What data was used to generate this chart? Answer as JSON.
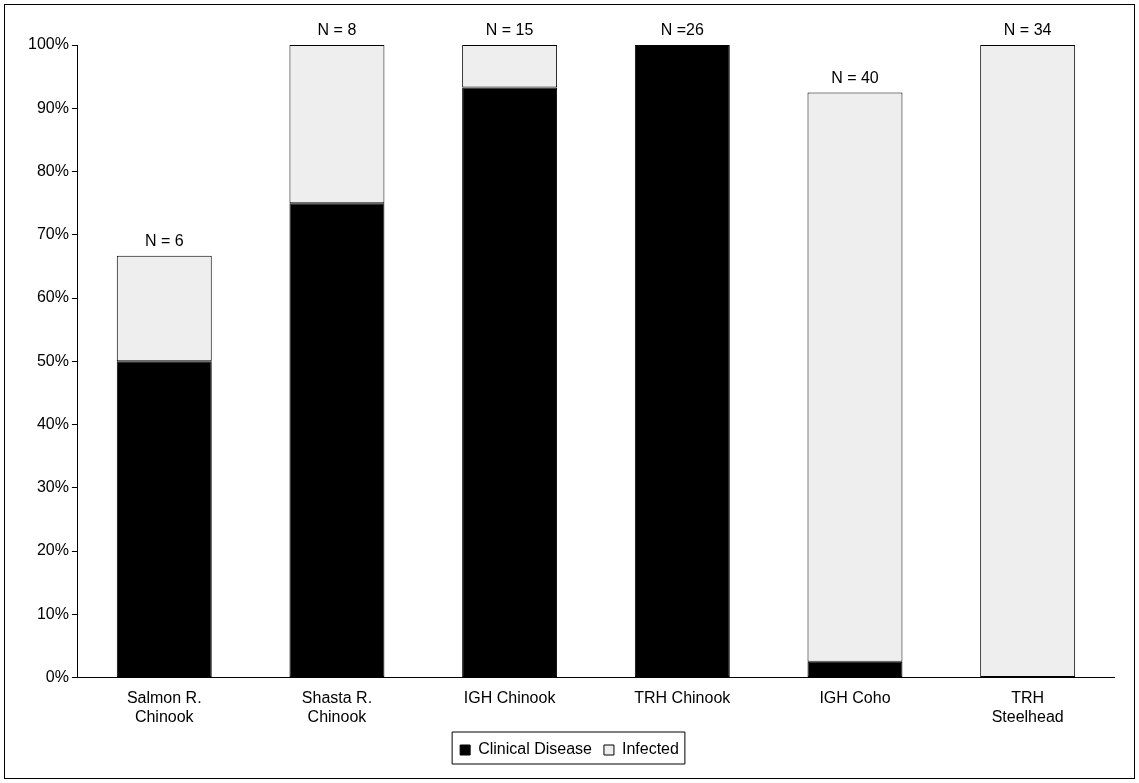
{
  "chart_data": {
    "type": "bar",
    "stacked": true,
    "categories": [
      "Salmon R. Chinook",
      "Shasta R. Chinook",
      "IGH Chinook",
      "TRH Chinook",
      "IGH Coho",
      "TRH Steelhead"
    ],
    "series": [
      {
        "name": "Clinical Disease",
        "color": "#000000",
        "values": [
          50,
          75,
          93.3,
          100,
          2.5,
          0
        ]
      },
      {
        "name": "Infected",
        "color": "#eeeeee",
        "values": [
          16.7,
          25,
          6.7,
          0,
          90,
          100
        ]
      }
    ],
    "ylim": [
      0,
      100
    ],
    "yticks": [
      {
        "value": 0,
        "label": "0%"
      },
      {
        "value": 10,
        "label": "10%"
      },
      {
        "value": 20,
        "label": "20%"
      },
      {
        "value": 30,
        "label": "30%"
      },
      {
        "value": 40,
        "label": "40%"
      },
      {
        "value": 50,
        "label": "50%"
      },
      {
        "value": 60,
        "label": "60%"
      },
      {
        "value": 70,
        "label": "70%"
      },
      {
        "value": 80,
        "label": "80%"
      },
      {
        "value": 90,
        "label": "90%"
      },
      {
        "value": 100,
        "label": "100%"
      }
    ],
    "annotations": [
      {
        "text": "N = 6",
        "x": "Salmon R. Chinook",
        "y": 66.7
      },
      {
        "text": "N = 8",
        "x": "Shasta R. Chinook",
        "y": 100
      },
      {
        "text": "N = 15",
        "x": "IGH Chinook",
        "y": 100
      },
      {
        "text": "N =26",
        "x": "TRH Chinook",
        "y": 100
      },
      {
        "text": "N = 40",
        "x": "IGH Coho",
        "y": 92.5
      },
      {
        "text": "N = 34",
        "x": "TRH Steelhead",
        "y": 100
      }
    ],
    "grid": false,
    "legend": "bottom"
  }
}
